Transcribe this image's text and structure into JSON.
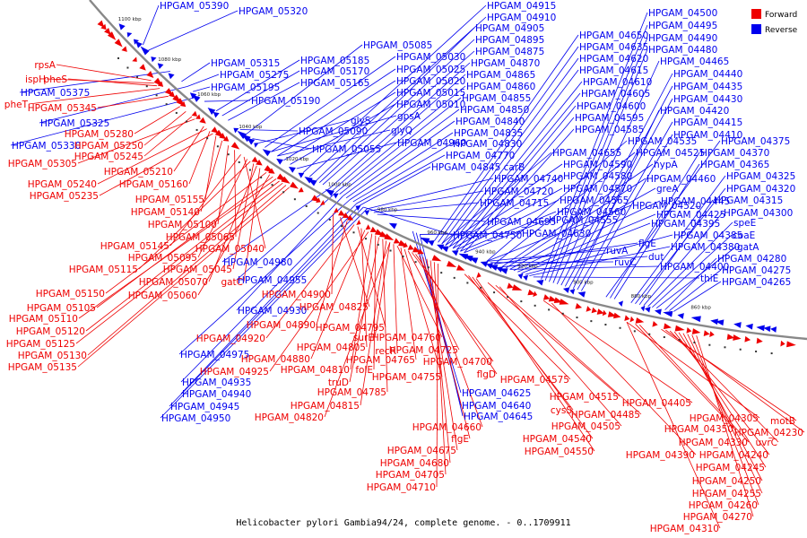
{
  "caption": "Helicobacter pylori Gambia94/24, complete genome. - 0..1709911",
  "legend": [
    {
      "label": "Forward",
      "color": "#ee0000"
    },
    {
      "label": "Reverse",
      "color": "#0000ee"
    }
  ],
  "colors": {
    "forward": "#ee0000",
    "reverse": "#0000ee",
    "backbone": "#888888"
  },
  "ticks": [
    "1100 kbp",
    "1080 kbp",
    "1060 kbp",
    "1040 kbp",
    "1020 kbp",
    "1000 kbp",
    "980 kbp",
    "960 kbp",
    "940 kbp",
    "920 kbp",
    "900 kbp",
    "880 kbp",
    "860 kbp"
  ],
  "labels": [
    {
      "t": "HPGAM_05390",
      "s": "reverse"
    },
    {
      "t": "HPGAM_05320",
      "s": "reverse"
    },
    {
      "t": "HPGAM_05315",
      "s": "reverse"
    },
    {
      "t": "HPGAM_05275",
      "s": "reverse"
    },
    {
      "t": "HPGAM_05195",
      "s": "reverse"
    },
    {
      "t": "HPGAM_05190",
      "s": "reverse"
    },
    {
      "t": "HPGAM_05185",
      "s": "reverse"
    },
    {
      "t": "HPGAM_05170",
      "s": "reverse"
    },
    {
      "t": "HPGAM_05165",
      "s": "reverse"
    },
    {
      "t": "HPGAM_05085",
      "s": "reverse"
    },
    {
      "t": "HPGAM_05030",
      "s": "reverse"
    },
    {
      "t": "HPGAM_05025",
      "s": "reverse"
    },
    {
      "t": "HPGAM_05020",
      "s": "reverse"
    },
    {
      "t": "HPGAM_05015",
      "s": "reverse"
    },
    {
      "t": "HPGAM_05010",
      "s": "reverse"
    },
    {
      "t": "HPGAM_05090",
      "s": "reverse"
    },
    {
      "t": "glyS",
      "s": "reverse"
    },
    {
      "t": "gpsA",
      "s": "reverse"
    },
    {
      "t": "glyQ",
      "s": "reverse"
    },
    {
      "t": "HPGAM_05055",
      "s": "reverse"
    },
    {
      "t": "HPGAM_04960",
      "s": "reverse"
    },
    {
      "t": "HPGAM_04915",
      "s": "reverse"
    },
    {
      "t": "HPGAM_04910",
      "s": "reverse"
    },
    {
      "t": "HPGAM_04905",
      "s": "reverse"
    },
    {
      "t": "HPGAM_04895",
      "s": "reverse"
    },
    {
      "t": "HPGAM_04875",
      "s": "reverse"
    },
    {
      "t": "HPGAM_04870",
      "s": "reverse"
    },
    {
      "t": "HPGAM_04865",
      "s": "reverse"
    },
    {
      "t": "HPGAM_04860",
      "s": "reverse"
    },
    {
      "t": "HPGAM_04855",
      "s": "reverse"
    },
    {
      "t": "HPGAM_04850",
      "s": "reverse"
    },
    {
      "t": "HPGAM_04840",
      "s": "reverse"
    },
    {
      "t": "HPGAM_04835",
      "s": "reverse"
    },
    {
      "t": "HPGAM_04830",
      "s": "reverse"
    },
    {
      "t": "HPGAM_04770",
      "s": "reverse"
    },
    {
      "t": "HPGAM_04845 carB",
      "s": "reverse"
    },
    {
      "t": "HPGAM_04740",
      "s": "reverse"
    },
    {
      "t": "HPGAM_04720",
      "s": "reverse"
    },
    {
      "t": "HPGAM_04715",
      "s": "reverse"
    },
    {
      "t": "HPGAM_04695",
      "s": "reverse"
    },
    {
      "t": "HPGAM_04750",
      "s": "reverse"
    },
    {
      "t": "HPGAM_04630",
      "s": "reverse"
    },
    {
      "t": "HPGAM_04650",
      "s": "reverse"
    },
    {
      "t": "HPGAM_04635",
      "s": "reverse"
    },
    {
      "t": "HPGAM_04620",
      "s": "reverse"
    },
    {
      "t": "HPGAM_04615",
      "s": "reverse"
    },
    {
      "t": "HPGAM_04610",
      "s": "reverse"
    },
    {
      "t": "HPGAM_04605",
      "s": "reverse"
    },
    {
      "t": "HPGAM_04600",
      "s": "reverse"
    },
    {
      "t": "HPGAM_04595",
      "s": "reverse"
    },
    {
      "t": "HPGAM_04585",
      "s": "reverse"
    },
    {
      "t": "HPGAM_04655",
      "s": "reverse"
    },
    {
      "t": "HPGAM_04590",
      "s": "reverse"
    },
    {
      "t": "HPGAM_04580",
      "s": "reverse"
    },
    {
      "t": "HPGAM_04570",
      "s": "reverse"
    },
    {
      "t": "HPGAM_04565",
      "s": "reverse"
    },
    {
      "t": "HPGAM_04560",
      "s": "reverse"
    },
    {
      "t": "HPGAM_04555",
      "s": "reverse"
    },
    {
      "t": "HPGAM_04535",
      "s": "reverse"
    },
    {
      "t": "HPGAM_04525",
      "s": "reverse"
    },
    {
      "t": "HPGAM_04520",
      "s": "reverse"
    },
    {
      "t": "hypA",
      "s": "reverse"
    },
    {
      "t": "HPGAM_04460",
      "s": "reverse"
    },
    {
      "t": "greA",
      "s": "reverse"
    },
    {
      "t": "HPGAM_04445",
      "s": "reverse"
    },
    {
      "t": "HPGAM_04425",
      "s": "reverse"
    },
    {
      "t": "HPGAM_04395",
      "s": "reverse"
    },
    {
      "t": "HPGAM_04385",
      "s": "reverse"
    },
    {
      "t": "HPGAM_04380",
      "s": "reverse"
    },
    {
      "t": "ruvA",
      "s": "reverse"
    },
    {
      "t": "ruvC",
      "s": "reverse"
    },
    {
      "t": "flgE",
      "s": "reverse"
    },
    {
      "t": "dut",
      "s": "reverse"
    },
    {
      "t": "HPGAM_04400",
      "s": "reverse"
    },
    {
      "t": "thiE",
      "s": "reverse"
    },
    {
      "t": "HPGAM_04500",
      "s": "reverse"
    },
    {
      "t": "HPGAM_04495",
      "s": "reverse"
    },
    {
      "t": "HPGAM_04490",
      "s": "reverse"
    },
    {
      "t": "HPGAM_04480",
      "s": "reverse"
    },
    {
      "t": "HPGAM_04465",
      "s": "reverse"
    },
    {
      "t": "HPGAM_04440",
      "s": "reverse"
    },
    {
      "t": "HPGAM_04435",
      "s": "reverse"
    },
    {
      "t": "HPGAM_04430",
      "s": "reverse"
    },
    {
      "t": "HPGAM_04420",
      "s": "reverse"
    },
    {
      "t": "HPGAM_04415",
      "s": "reverse"
    },
    {
      "t": "HPGAM_04410",
      "s": "reverse"
    },
    {
      "t": "HPGAM_04375",
      "s": "reverse"
    },
    {
      "t": "HPGAM_04370",
      "s": "reverse"
    },
    {
      "t": "HPGAM_04365",
      "s": "reverse"
    },
    {
      "t": "HPGAM_04325",
      "s": "reverse"
    },
    {
      "t": "HPGAM_04320",
      "s": "reverse"
    },
    {
      "t": "HPGAM_04315",
      "s": "reverse"
    },
    {
      "t": "HPGAM_04300",
      "s": "reverse"
    },
    {
      "t": "speE",
      "s": "reverse"
    },
    {
      "t": "coaE",
      "s": "reverse"
    },
    {
      "t": "gatA",
      "s": "reverse"
    },
    {
      "t": "HPGAM_04280",
      "s": "reverse"
    },
    {
      "t": "HPGAM_04275",
      "s": "reverse"
    },
    {
      "t": "HPGAM_04265",
      "s": "reverse"
    },
    {
      "t": "HPGAM_04980",
      "s": "reverse"
    },
    {
      "t": "HPGAM_04955",
      "s": "reverse"
    },
    {
      "t": "HPGAM_04930",
      "s": "reverse"
    },
    {
      "t": "HPGAM_04975",
      "s": "reverse"
    },
    {
      "t": "HPGAM_04935",
      "s": "reverse"
    },
    {
      "t": "HPGAM_04940",
      "s": "reverse"
    },
    {
      "t": "HPGAM_04945",
      "s": "reverse"
    },
    {
      "t": "HPGAM_04950",
      "s": "reverse"
    },
    {
      "t": "HPGAM_05375",
      "s": "reverse"
    },
    {
      "t": "HPGAM_05325",
      "s": "reverse"
    },
    {
      "t": "HPGAM_05330",
      "s": "reverse"
    },
    {
      "t": "HPGAM_04625",
      "s": "reverse"
    },
    {
      "t": "HPGAM_04640",
      "s": "reverse"
    },
    {
      "t": "HPGAM_04645",
      "s": "reverse"
    },
    {
      "t": "rpsA",
      "s": "forward"
    },
    {
      "t": "ispH",
      "s": "forward"
    },
    {
      "t": "pheS",
      "s": "forward"
    },
    {
      "t": "pheT",
      "s": "forward"
    },
    {
      "t": "HPGAM_05345",
      "s": "forward"
    },
    {
      "t": "HPGAM_05280",
      "s": "forward"
    },
    {
      "t": "HPGAM_05250",
      "s": "forward"
    },
    {
      "t": "HPGAM_05245",
      "s": "forward"
    },
    {
      "t": "HPGAM_05305",
      "s": "forward"
    },
    {
      "t": "HPGAM_05210",
      "s": "forward"
    },
    {
      "t": "HPGAM_05240",
      "s": "forward"
    },
    {
      "t": "HPGAM_05160",
      "s": "forward"
    },
    {
      "t": "HPGAM_05235",
      "s": "forward"
    },
    {
      "t": "HPGAM_05155",
      "s": "forward"
    },
    {
      "t": "HPGAM_05140",
      "s": "forward"
    },
    {
      "t": "HPGAM_05100",
      "s": "forward"
    },
    {
      "t": "HPGAM_05065",
      "s": "forward"
    },
    {
      "t": "HPGAM_05145",
      "s": "forward"
    },
    {
      "t": "HPGAM_05040",
      "s": "forward"
    },
    {
      "t": "HPGAM_05095",
      "s": "forward"
    },
    {
      "t": "HPGAM_05115",
      "s": "forward"
    },
    {
      "t": "HPGAM_05045",
      "s": "forward"
    },
    {
      "t": "HPGAM_05070",
      "s": "forward"
    },
    {
      "t": "gatC",
      "s": "forward"
    },
    {
      "t": "HPGAM_05150",
      "s": "forward"
    },
    {
      "t": "HPGAM_05060",
      "s": "forward"
    },
    {
      "t": "HPGAM_05105",
      "s": "forward"
    },
    {
      "t": "HPGAM_05110",
      "s": "forward"
    },
    {
      "t": "HPGAM_05120",
      "s": "forward"
    },
    {
      "t": "HPGAM_05125",
      "s": "forward"
    },
    {
      "t": "HPGAM_05130",
      "s": "forward"
    },
    {
      "t": "HPGAM_05135",
      "s": "forward"
    },
    {
      "t": "HPGAM_04900",
      "s": "forward"
    },
    {
      "t": "HPGAM_04825",
      "s": "forward"
    },
    {
      "t": "HPGAM_04890",
      "s": "forward"
    },
    {
      "t": "HPGAM_04920",
      "s": "forward"
    },
    {
      "t": "HPGAM_04795",
      "s": "forward"
    },
    {
      "t": "HPGAM_04805",
      "s": "forward"
    },
    {
      "t": "HPGAM_04880",
      "s": "forward"
    },
    {
      "t": "HPGAM_04925",
      "s": "forward"
    },
    {
      "t": "HPGAM_04810",
      "s": "forward"
    },
    {
      "t": "folE",
      "s": "forward"
    },
    {
      "t": "truD",
      "s": "forward"
    },
    {
      "t": "HPGAM_04785",
      "s": "forward"
    },
    {
      "t": "HPGAM_04815",
      "s": "forward"
    },
    {
      "t": "HPGAM_04820",
      "s": "forward"
    },
    {
      "t": "surE",
      "s": "forward"
    },
    {
      "t": "recR",
      "s": "forward"
    },
    {
      "t": "HPGAM_04760",
      "s": "forward"
    },
    {
      "t": "HPGAM_04765",
      "s": "forward"
    },
    {
      "t": "HPGAM_04755",
      "s": "forward"
    },
    {
      "t": "HPGAM_04725",
      "s": "forward"
    },
    {
      "t": "HPGAM_04700",
      "s": "forward"
    },
    {
      "t": "flgD",
      "s": "forward"
    },
    {
      "t": "HPGAM_04660",
      "s": "forward"
    },
    {
      "t": "flgE",
      "s": "forward"
    },
    {
      "t": "HPGAM_04675",
      "s": "forward"
    },
    {
      "t": "HPGAM_04680",
      "s": "forward"
    },
    {
      "t": "HPGAM_04705",
      "s": "forward"
    },
    {
      "t": "HPGAM_04710",
      "s": "forward"
    },
    {
      "t": "HPGAM_04575",
      "s": "forward"
    },
    {
      "t": "cysS",
      "s": "forward"
    },
    {
      "t": "HPGAM_04540",
      "s": "forward"
    },
    {
      "t": "HPGAM_04550",
      "s": "forward"
    },
    {
      "t": "HPGAM_04515",
      "s": "forward"
    },
    {
      "t": "HPGAM_04485",
      "s": "forward"
    },
    {
      "t": "HPGAM_04505",
      "s": "forward"
    },
    {
      "t": "HPGAM_04405",
      "s": "forward"
    },
    {
      "t": "HPGAM_04390",
      "s": "forward"
    },
    {
      "t": "HPGAM_04305",
      "s": "forward"
    },
    {
      "t": "HPGAM_04350",
      "s": "forward"
    },
    {
      "t": "HPGAM_04330",
      "s": "forward"
    },
    {
      "t": "motB",
      "s": "forward"
    },
    {
      "t": "HPGAM_04230",
      "s": "forward"
    },
    {
      "t": "uvrC",
      "s": "forward"
    },
    {
      "t": "HPGAM_04240",
      "s": "forward"
    },
    {
      "t": "HPGAM_04245",
      "s": "forward"
    },
    {
      "t": "HPGAM_04250",
      "s": "forward"
    },
    {
      "t": "HPGAM_04255",
      "s": "forward"
    },
    {
      "t": "HPGAM_04260",
      "s": "forward"
    },
    {
      "t": "HPGAM_04270",
      "s": "forward"
    },
    {
      "t": "HPGAM_04310",
      "s": "forward"
    }
  ]
}
